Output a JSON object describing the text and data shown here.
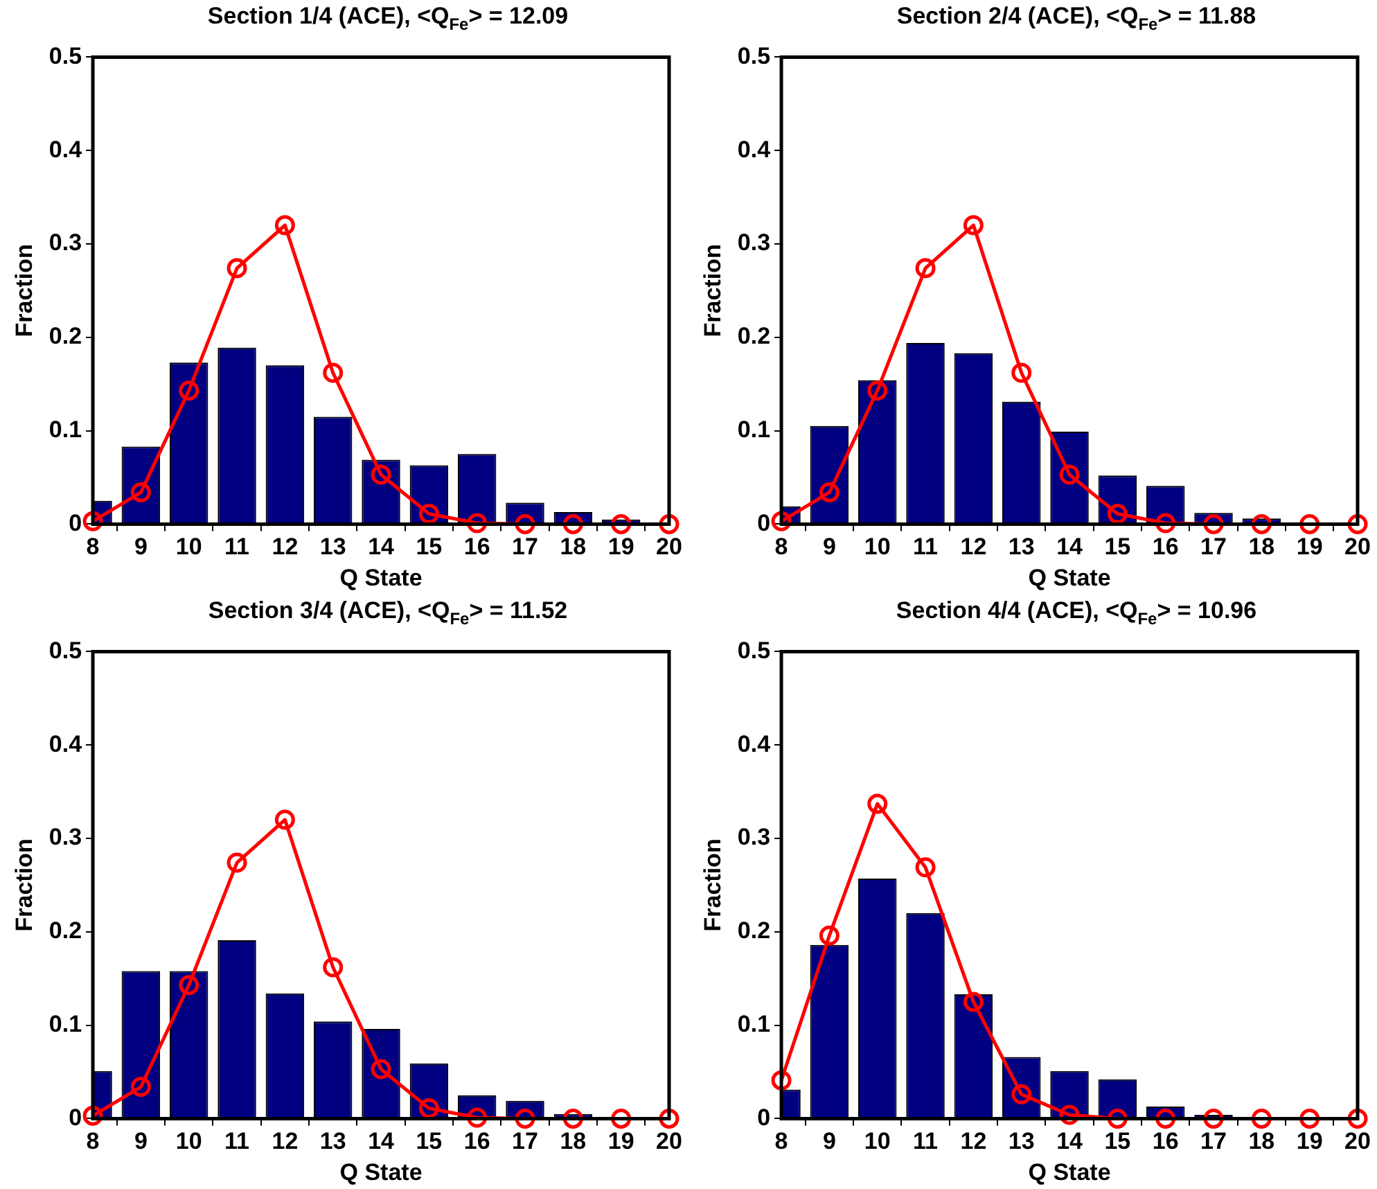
{
  "chart_data": [
    {
      "type": "bar",
      "title": "Section 1/4 (ACE), <Q$_{Fe}$> = 12.09",
      "xlabel": "Q State",
      "ylabel": "Fraction",
      "x": [
        8,
        9,
        10,
        11,
        12,
        13,
        14,
        15,
        16,
        17,
        18,
        19,
        20
      ],
      "xlim": [
        8,
        20
      ],
      "xticks": [
        8,
        9,
        10,
        11,
        12,
        13,
        14,
        15,
        16,
        17,
        18,
        19,
        20
      ],
      "ylim": [
        0,
        0.5
      ],
      "yticks": [
        0,
        0.1,
        0.2,
        0.3,
        0.4,
        0.5
      ],
      "grid": false,
      "legend": false,
      "series": [
        {
          "color": "#000080",
          "values": [
            0.025,
            0.083,
            0.173,
            0.189,
            0.17,
            0.115,
            0.069,
            0.063,
            0.075,
            0.023,
            0.013,
            0.005,
            0
          ]
        },
        {
          "type": "line",
          "color": "#ff0000",
          "marker": "circle",
          "line_style": "solid",
          "values": [
            0.003,
            0.034,
            0.143,
            0.274,
            0.32,
            0.162,
            0.053,
            0.011,
            0.001,
            0,
            0,
            0,
            0
          ]
        }
      ]
    },
    {
      "type": "bar",
      "title": "Section 2/4 (ACE), <Q$_{Fe}$> = 11.88",
      "xlabel": "Q State",
      "ylabel": "Fraction",
      "x": [
        8,
        9,
        10,
        11,
        12,
        13,
        14,
        15,
        16,
        17,
        18,
        19,
        20
      ],
      "xlim": [
        8,
        20
      ],
      "xticks": [
        8,
        9,
        10,
        11,
        12,
        13,
        14,
        15,
        16,
        17,
        18,
        19,
        20
      ],
      "ylim": [
        0,
        0.5
      ],
      "yticks": [
        0,
        0.1,
        0.2,
        0.3,
        0.4,
        0.5
      ],
      "grid": false,
      "legend": false,
      "series": [
        {
          "color": "#000080",
          "values": [
            0.019,
            0.105,
            0.154,
            0.194,
            0.183,
            0.131,
            0.099,
            0.052,
            0.041,
            0.012,
            0.006,
            null,
            0
          ]
        },
        {
          "type": "line",
          "color": "#ff0000",
          "marker": "circle",
          "line_style": "solid",
          "values": [
            0.003,
            0.034,
            0.143,
            0.274,
            0.32,
            0.162,
            0.053,
            0.011,
            0.001,
            0,
            0,
            0,
            0
          ]
        }
      ]
    },
    {
      "type": "bar",
      "title": "Section 3/4 (ACE), <Q$_{Fe}$> = 11.52",
      "xlabel": "Q State",
      "ylabel": "Fraction",
      "x": [
        8,
        9,
        10,
        11,
        12,
        13,
        14,
        15,
        16,
        17,
        18,
        19,
        20
      ],
      "xlim": [
        8,
        20
      ],
      "xticks": [
        8,
        9,
        10,
        11,
        12,
        13,
        14,
        15,
        16,
        17,
        18,
        19,
        20
      ],
      "ylim": [
        0,
        0.5
      ],
      "yticks": [
        0,
        0.1,
        0.2,
        0.3,
        0.4,
        0.5
      ],
      "grid": false,
      "legend": false,
      "series": [
        {
          "color": "#000080",
          "values": [
            0.051,
            0.158,
            0.158,
            0.191,
            0.134,
            0.104,
            0.096,
            0.059,
            0.025,
            0.019,
            0.005,
            null,
            0
          ]
        },
        {
          "type": "line",
          "color": "#ff0000",
          "marker": "circle",
          "line_style": "solid",
          "values": [
            0.003,
            0.034,
            0.143,
            0.274,
            0.32,
            0.162,
            0.053,
            0.011,
            0.001,
            0,
            0,
            0,
            0
          ]
        }
      ]
    },
    {
      "type": "bar",
      "title": "Section 4/4 (ACE), <Q$_{Fe}$> = 10.96",
      "xlabel": "Q State",
      "ylabel": "Fraction",
      "x": [
        8,
        9,
        10,
        11,
        12,
        13,
        14,
        15,
        16,
        17,
        18,
        19,
        20
      ],
      "xlim": [
        8,
        20
      ],
      "xticks": [
        8,
        9,
        10,
        11,
        12,
        13,
        14,
        15,
        16,
        17,
        18,
        19,
        20
      ],
      "ylim": [
        0,
        0.5
      ],
      "yticks": [
        0,
        0.1,
        0.2,
        0.3,
        0.4,
        0.5
      ],
      "grid": false,
      "legend": false,
      "series": [
        {
          "color": "#000080",
          "values": [
            0.031,
            0.186,
            0.257,
            0.22,
            0.133,
            0.066,
            0.051,
            0.042,
            0.013,
            0.004,
            0,
            0,
            0
          ]
        },
        {
          "type": "line",
          "color": "#ff0000",
          "marker": "circle",
          "line_style": "solid",
          "values": [
            0.041,
            0.196,
            0.337,
            0.269,
            0.125,
            0.026,
            0.004,
            0,
            0,
            0,
            0,
            0,
            0
          ]
        }
      ]
    }
  ]
}
